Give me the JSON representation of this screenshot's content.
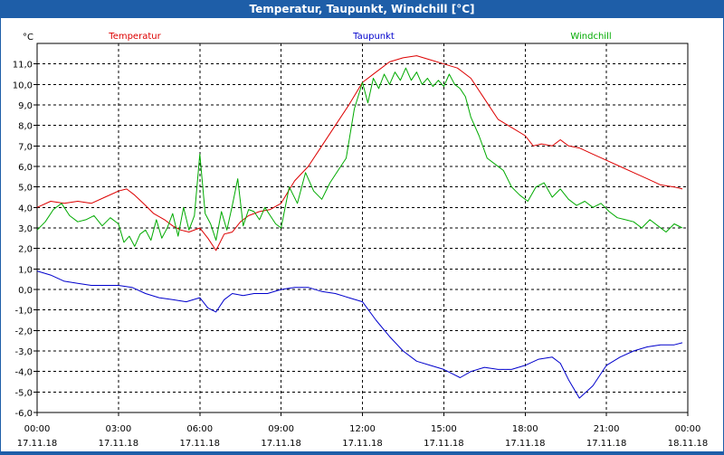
{
  "window": {
    "title": "Temperatur, Taupunkt, Windchill [°C]"
  },
  "chart_data": {
    "type": "line",
    "title": "Temperatur, Taupunkt, Windchill [°C]",
    "ylabel": "°C",
    "xlabel": "",
    "ylim": [
      -6,
      12
    ],
    "xlim": [
      0,
      24
    ],
    "grid": true,
    "y_ticks": [
      {
        "value": 11,
        "label": "11,0"
      },
      {
        "value": 10,
        "label": "10,0"
      },
      {
        "value": 9,
        "label": "9,0"
      },
      {
        "value": 8,
        "label": "8,0"
      },
      {
        "value": 7,
        "label": "7,0"
      },
      {
        "value": 6,
        "label": "6,0"
      },
      {
        "value": 5,
        "label": "5,0"
      },
      {
        "value": 4,
        "label": "4,0"
      },
      {
        "value": 3,
        "label": "3,0"
      },
      {
        "value": 2,
        "label": "2,0"
      },
      {
        "value": 1,
        "label": "1,0"
      },
      {
        "value": 0,
        "label": "0,0"
      },
      {
        "value": -1,
        "label": "-1,0"
      },
      {
        "value": -2,
        "label": "-2,0"
      },
      {
        "value": -3,
        "label": "-3,0"
      },
      {
        "value": -4,
        "label": "-4,0"
      },
      {
        "value": -5,
        "label": "-5,0"
      },
      {
        "value": -6,
        "label": "-6,0"
      }
    ],
    "x_ticks": [
      {
        "value": 0,
        "time": "00:00",
        "date": "17.11.18"
      },
      {
        "value": 3,
        "time": "03:00",
        "date": "17.11.18"
      },
      {
        "value": 6,
        "time": "06:00",
        "date": "17.11.18"
      },
      {
        "value": 9,
        "time": "09:00",
        "date": "17.11.18"
      },
      {
        "value": 12,
        "time": "12:00",
        "date": "17.11.18"
      },
      {
        "value": 15,
        "time": "15:00",
        "date": "17.11.18"
      },
      {
        "value": 18,
        "time": "18:00",
        "date": "17.11.18"
      },
      {
        "value": 21,
        "time": "21:00",
        "date": "17.11.18"
      },
      {
        "value": 24,
        "time": "00:00",
        "date": "18.11.18"
      }
    ],
    "series": [
      {
        "name": "Temperatur",
        "color": "#dd0000",
        "legend_position": "top-left",
        "x": [
          0,
          0.5,
          1,
          1.5,
          2,
          2.5,
          3,
          3.3,
          3.6,
          4,
          4.3,
          4.7,
          5,
          5.3,
          5.6,
          6,
          6.3,
          6.6,
          6.9,
          7.2,
          7.5,
          7.8,
          8.2,
          8.6,
          9,
          9.5,
          10,
          10.5,
          11,
          11.5,
          12,
          12.5,
          13,
          13.5,
          14,
          14.5,
          15,
          15.5,
          16,
          16.5,
          17,
          17.5,
          18,
          18.3,
          18.6,
          19,
          19.3,
          19.6,
          20,
          20.5,
          21,
          21.5,
          22,
          22.5,
          23,
          23.5,
          23.8
        ],
        "values": [
          4.0,
          4.3,
          4.2,
          4.3,
          4.2,
          4.5,
          4.8,
          4.9,
          4.6,
          4.1,
          3.7,
          3.4,
          3.1,
          2.9,
          2.8,
          3.0,
          2.5,
          1.9,
          2.7,
          2.8,
          3.3,
          3.6,
          3.8,
          3.9,
          4.2,
          5.3,
          6.0,
          7.0,
          8.0,
          9.0,
          10.1,
          10.6,
          11.1,
          11.3,
          11.4,
          11.2,
          11.0,
          10.8,
          10.3,
          9.3,
          8.3,
          7.9,
          7.5,
          7.0,
          7.1,
          7.0,
          7.3,
          7.0,
          6.9,
          6.6,
          6.3,
          6.0,
          5.7,
          5.4,
          5.1,
          5.0,
          4.9
        ]
      },
      {
        "name": "Taupunkt",
        "color": "#0000cc",
        "legend_position": "top-center",
        "x": [
          0,
          0.5,
          1,
          1.5,
          2,
          2.5,
          3,
          3.5,
          4,
          4.5,
          5,
          5.5,
          6,
          6.3,
          6.6,
          6.9,
          7.2,
          7.6,
          8,
          8.5,
          9,
          9.5,
          10,
          10.5,
          11,
          11.5,
          12,
          12.5,
          13,
          13.5,
          14,
          14.5,
          15,
          15.3,
          15.6,
          16,
          16.5,
          17,
          17.5,
          18,
          18.5,
          19,
          19.3,
          19.6,
          20,
          20.5,
          21,
          21.5,
          22,
          22.5,
          23,
          23.5,
          23.8
        ],
        "values": [
          0.9,
          0.7,
          0.4,
          0.3,
          0.2,
          0.2,
          0.2,
          0.1,
          -0.2,
          -0.4,
          -0.5,
          -0.6,
          -0.4,
          -0.9,
          -1.1,
          -0.5,
          -0.2,
          -0.3,
          -0.2,
          -0.2,
          0.0,
          0.1,
          0.1,
          -0.1,
          -0.2,
          -0.4,
          -0.6,
          -1.5,
          -2.3,
          -3.0,
          -3.5,
          -3.7,
          -3.9,
          -4.1,
          -4.3,
          -4.0,
          -3.8,
          -3.9,
          -3.9,
          -3.7,
          -3.4,
          -3.3,
          -3.6,
          -4.4,
          -5.3,
          -4.7,
          -3.7,
          -3.3,
          -3.0,
          -2.8,
          -2.7,
          -2.7,
          -2.6
        ]
      },
      {
        "name": "Windchill",
        "color": "#00aa00",
        "legend_position": "top-right",
        "x": [
          0,
          0.3,
          0.6,
          0.9,
          1.2,
          1.5,
          1.8,
          2.1,
          2.4,
          2.7,
          3,
          3.2,
          3.4,
          3.6,
          3.8,
          4,
          4.2,
          4.4,
          4.6,
          4.8,
          5,
          5.2,
          5.4,
          5.6,
          5.8,
          6,
          6.2,
          6.4,
          6.6,
          6.8,
          7,
          7.2,
          7.4,
          7.6,
          7.8,
          8,
          8.2,
          8.4,
          8.6,
          8.8,
          9,
          9.3,
          9.6,
          9.9,
          10.2,
          10.5,
          10.8,
          11.1,
          11.4,
          11.7,
          12,
          12.2,
          12.4,
          12.6,
          12.8,
          13,
          13.2,
          13.4,
          13.6,
          13.8,
          14,
          14.2,
          14.4,
          14.6,
          14.8,
          15,
          15.2,
          15.4,
          15.6,
          15.8,
          16,
          16.3,
          16.6,
          16.9,
          17.2,
          17.5,
          17.8,
          18.1,
          18.4,
          18.7,
          19,
          19.3,
          19.6,
          19.9,
          20.2,
          20.5,
          20.8,
          21.1,
          21.4,
          21.7,
          22,
          22.3,
          22.6,
          22.9,
          23.2,
          23.5,
          23.8
        ],
        "values": [
          2.9,
          3.3,
          3.9,
          4.2,
          3.6,
          3.3,
          3.4,
          3.6,
          3.1,
          3.5,
          3.2,
          2.3,
          2.6,
          2.1,
          2.7,
          2.9,
          2.4,
          3.4,
          2.5,
          3.0,
          3.7,
          2.6,
          4.0,
          2.9,
          3.6,
          6.6,
          3.7,
          3.2,
          2.4,
          3.8,
          2.9,
          4.1,
          5.4,
          3.1,
          3.9,
          3.8,
          3.4,
          4.0,
          3.6,
          3.2,
          3.0,
          5.0,
          4.2,
          5.7,
          4.8,
          4.4,
          5.2,
          5.8,
          6.4,
          8.8,
          10.1,
          9.1,
          10.3,
          9.8,
          10.5,
          10.0,
          10.6,
          10.2,
          10.8,
          10.2,
          10.6,
          10.0,
          10.3,
          9.9,
          10.2,
          9.9,
          10.5,
          10.0,
          9.8,
          9.4,
          8.4,
          7.5,
          6.4,
          6.1,
          5.8,
          5.0,
          4.6,
          4.3,
          5.0,
          5.2,
          4.5,
          4.9,
          4.4,
          4.1,
          4.3,
          4.0,
          4.2,
          3.8,
          3.5,
          3.4,
          3.3,
          3.0,
          3.4,
          3.1,
          2.8,
          3.2,
          3.0
        ]
      }
    ]
  }
}
